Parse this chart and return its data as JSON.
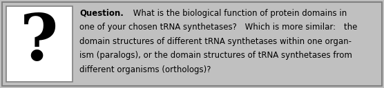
{
  "bg_color": "#c0c0c0",
  "outer_border_color": "#808080",
  "inner_box_bg": "#ffffff",
  "text_color": "#000000",
  "fig_width": 5.56,
  "fig_height": 1.28,
  "dpi": 100,
  "lines": [
    {
      "bold": "Question.",
      "normal": " What is the biological function of protein domains in"
    },
    {
      "bold": "",
      "normal": "one of your chosen tRNA synthetases? Which is more similar: the"
    },
    {
      "bold": "",
      "normal": "domain structures of different tRNA synthetases within one organ-"
    },
    {
      "bold": "",
      "normal": "ism (paralogs), or the domain structures of tRNA synthetases from"
    },
    {
      "bold": "",
      "normal": "different organisms (orthologs)?"
    }
  ],
  "font_family": "DejaVu Sans",
  "font_size": 8.5,
  "question_mark": "?",
  "qmark_fontsize": 68
}
